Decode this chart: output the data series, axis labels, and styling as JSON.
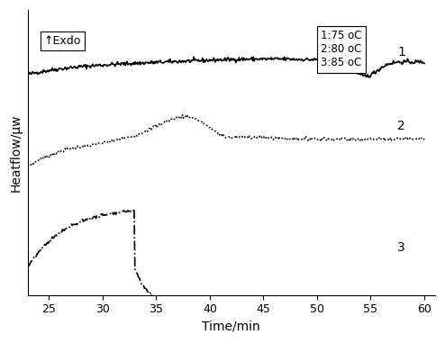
{
  "xlim": [
    23,
    61
  ],
  "ylim": [
    -0.7,
    3.5
  ],
  "xlabel": "Time/min",
  "ylabel": "Heatflow/µw",
  "exdo_label": "↑Exdo",
  "legend_lines": [
    "1:75 oC",
    "2:80 oC",
    "3:85 oC"
  ],
  "curve1_label": "1",
  "curve2_label": "2",
  "curve3_label": "3",
  "background_color": "#ffffff",
  "line_color": "#000000",
  "xticks": [
    25,
    30,
    35,
    40,
    45,
    50,
    55,
    60
  ],
  "xtick_labels": [
    "25",
    "30",
    "35",
    "40",
    "45",
    "50",
    "55",
    "60"
  ]
}
